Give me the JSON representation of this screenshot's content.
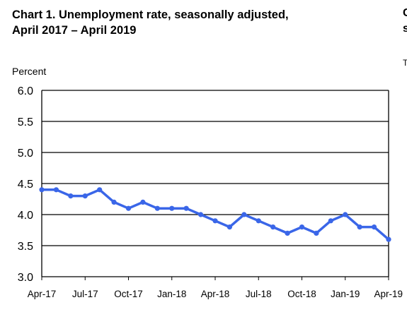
{
  "chart_data": {
    "type": "line",
    "title_line1": "Chart 1. Unemployment rate, seasonally adjusted,",
    "title_line2": "April 2017 – April 2019",
    "ylabel": "Percent",
    "ylim": [
      3.0,
      6.0
    ],
    "yticks": [
      "6.0",
      "5.5",
      "5.0",
      "4.5",
      "4.0",
      "3.5",
      "3.0"
    ],
    "xtick_labels": [
      "Apr-17",
      "Jul-17",
      "Oct-17",
      "Jan-18",
      "Apr-18",
      "Jul-18",
      "Oct-18",
      "Jan-19",
      "Apr-19"
    ],
    "x": [
      "Apr-17",
      "May-17",
      "Jun-17",
      "Jul-17",
      "Aug-17",
      "Sep-17",
      "Oct-17",
      "Nov-17",
      "Dec-17",
      "Jan-18",
      "Feb-18",
      "Mar-18",
      "Apr-18",
      "May-18",
      "Jun-18",
      "Jul-18",
      "Aug-18",
      "Sep-18",
      "Oct-18",
      "Nov-18",
      "Dec-18",
      "Jan-19",
      "Feb-19",
      "Mar-19",
      "Apr-19"
    ],
    "values": [
      4.4,
      4.4,
      4.3,
      4.3,
      4.4,
      4.2,
      4.1,
      4.2,
      4.1,
      4.1,
      4.1,
      4.0,
      3.9,
      3.8,
      4.0,
      3.9,
      3.8,
      3.7,
      3.8,
      3.7,
      3.9,
      4.0,
      3.8,
      3.8,
      3.6
    ],
    "grid": true,
    "line_color": "#3a66e8"
  },
  "side_panel": {
    "line1": "C",
    "line2": "s",
    "line3": "T"
  }
}
